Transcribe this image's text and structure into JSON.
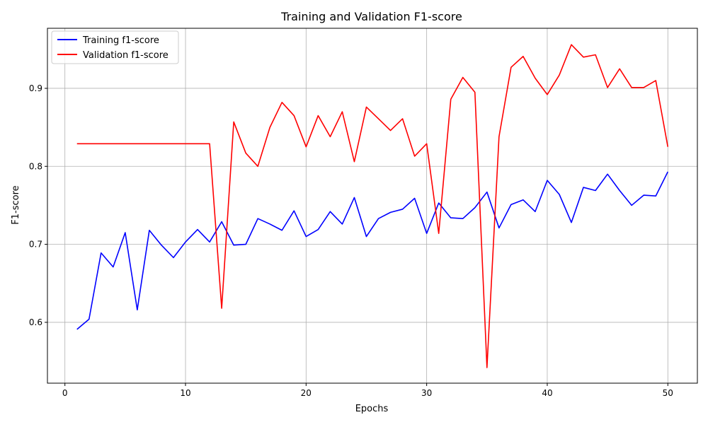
{
  "chart_data": {
    "type": "line",
    "title": "Training and Validation F1-score",
    "xlabel": "Epochs",
    "ylabel": "F1-score",
    "xlim": [
      -1.45,
      52.45
    ],
    "ylim": [
      0.522,
      0.977
    ],
    "xticks": [
      0,
      10,
      20,
      30,
      40,
      50
    ],
    "yticks": [
      0.6,
      0.7,
      0.8,
      0.9
    ],
    "xtick_labels": [
      "0",
      "10",
      "20",
      "30",
      "40",
      "50"
    ],
    "ytick_labels": [
      "0.6",
      "0.7",
      "0.8",
      "0.9"
    ],
    "grid": true,
    "legend_position": "upper left",
    "x": [
      1,
      2,
      3,
      4,
      5,
      6,
      7,
      8,
      9,
      10,
      11,
      12,
      13,
      14,
      15,
      16,
      17,
      18,
      19,
      20,
      21,
      22,
      23,
      24,
      25,
      26,
      27,
      28,
      29,
      30,
      31,
      32,
      33,
      34,
      35,
      36,
      37,
      38,
      39,
      40,
      41,
      42,
      43,
      44,
      45,
      46,
      47,
      48,
      49,
      50
    ],
    "series": [
      {
        "name": "Training f1-score",
        "color": "#0000ff",
        "values": [
          0.591,
          0.604,
          0.689,
          0.671,
          0.715,
          0.616,
          0.718,
          0.699,
          0.683,
          0.703,
          0.719,
          0.703,
          0.729,
          0.699,
          0.7,
          0.733,
          0.726,
          0.718,
          0.743,
          0.71,
          0.719,
          0.742,
          0.726,
          0.76,
          0.71,
          0.733,
          0.741,
          0.745,
          0.759,
          0.714,
          0.753,
          0.734,
          0.733,
          0.747,
          0.767,
          0.721,
          0.751,
          0.757,
          0.742,
          0.782,
          0.764,
          0.728,
          0.773,
          0.769,
          0.79,
          0.769,
          0.75,
          0.763,
          0.762,
          0.793
        ]
      },
      {
        "name": "Validation f1-score",
        "color": "#ff0000",
        "values": [
          0.829,
          0.829,
          0.829,
          0.829,
          0.829,
          0.829,
          0.829,
          0.829,
          0.829,
          0.829,
          0.829,
          0.829,
          0.618,
          0.857,
          0.817,
          0.8,
          0.85,
          0.882,
          0.865,
          0.825,
          0.865,
          0.838,
          0.87,
          0.806,
          0.876,
          0.861,
          0.846,
          0.861,
          0.813,
          0.829,
          0.714,
          0.886,
          0.914,
          0.895,
          0.542,
          0.838,
          0.927,
          0.941,
          0.913,
          0.892,
          0.917,
          0.956,
          0.94,
          0.943,
          0.901,
          0.925,
          0.901,
          0.901,
          0.91,
          0.825
        ]
      }
    ]
  }
}
